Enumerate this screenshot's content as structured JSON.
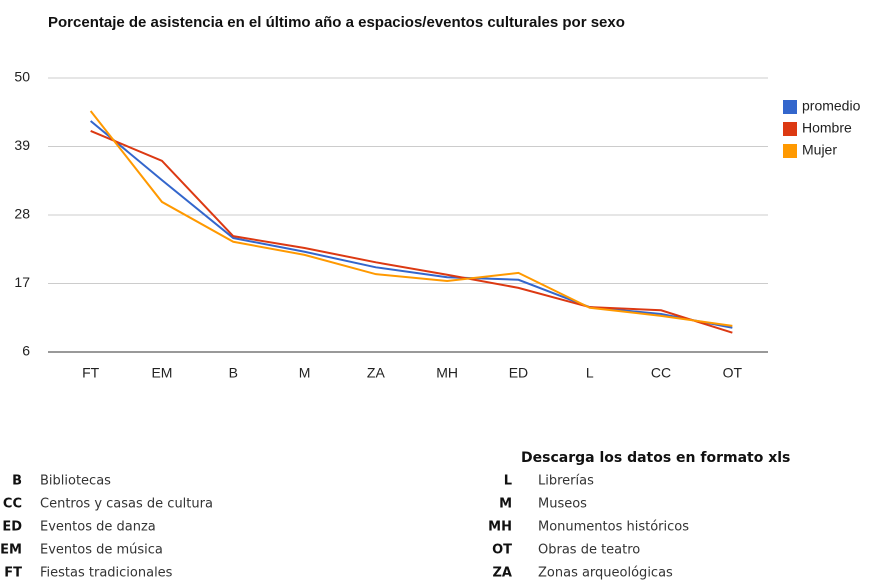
{
  "chart_data": {
    "type": "line",
    "title": "Porcentaje de asistencia en el último año a espacios/eventos culturales por sexo",
    "categories": [
      "FT",
      "EM",
      "B",
      "M",
      "ZA",
      "MH",
      "ED",
      "L",
      "CC",
      "OT"
    ],
    "series": [
      {
        "name": "promedio",
        "color": "#3366cc",
        "values": [
          43.1,
          33.6,
          24.3,
          22.1,
          19.6,
          18.0,
          17.6,
          13.2,
          12.1,
          9.9
        ]
      },
      {
        "name": "Hombre",
        "color": "#dc3912",
        "values": [
          41.5,
          36.7,
          24.6,
          22.7,
          20.4,
          18.4,
          16.3,
          13.2,
          12.7,
          9.1
        ]
      },
      {
        "name": "Mujer",
        "color": "#ff9900",
        "values": [
          44.7,
          30.1,
          23.7,
          21.6,
          18.5,
          17.4,
          18.7,
          13.1,
          11.8,
          10.2
        ]
      }
    ],
    "ylim": [
      6,
      50
    ],
    "yticks": [
      6,
      17,
      28,
      39,
      50
    ],
    "grid": true,
    "legend": "right"
  },
  "download_link": "Descarga los datos en formato xls",
  "glossary": [
    {
      "code": "B",
      "label": "Bibliotecas"
    },
    {
      "code": "CC",
      "label": "Centros y casas de cultura"
    },
    {
      "code": "ED",
      "label": "Eventos de danza"
    },
    {
      "code": "EM",
      "label": "Eventos de música"
    },
    {
      "code": "FT",
      "label": "Fiestas tradicionales"
    },
    {
      "code": "L",
      "label": "Librerías"
    },
    {
      "code": "M",
      "label": "Museos"
    },
    {
      "code": "MH",
      "label": "Monumentos históricos"
    },
    {
      "code": "OT",
      "label": "Obras de teatro"
    },
    {
      "code": "ZA",
      "label": "Zonas arqueológicas"
    }
  ]
}
